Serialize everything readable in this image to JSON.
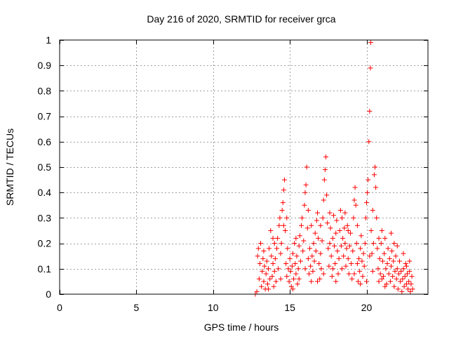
{
  "chart_data": {
    "type": "scatter",
    "title": "Day 216 of 2020, SRMTID for receiver grca",
    "xlabel": "GPS time / hours",
    "ylabel": "SRMTID / TECUs",
    "xlim": [
      0,
      24
    ],
    "ylim": [
      0,
      1
    ],
    "xticks": [
      0,
      5,
      10,
      15,
      20
    ],
    "xtick_labels": [
      "0",
      "5",
      "10",
      "15",
      "20"
    ],
    "yticks": [
      0,
      0.1,
      0.2,
      0.3,
      0.4,
      0.5,
      0.6,
      0.7,
      0.8,
      0.9,
      1
    ],
    "ytick_labels": [
      "0",
      "0.1",
      "0.2",
      "0.3",
      "0.4",
      "0.5",
      "0.6",
      "0.7",
      "0.8",
      "0.9",
      "1"
    ],
    "grid": true,
    "marker": "+",
    "marker_color": "#ff0000",
    "series": [
      {
        "name": "SRMTID",
        "points": [
          [
            12.75,
            0.0
          ],
          [
            12.85,
            0.01
          ],
          [
            12.9,
            0.15
          ],
          [
            12.95,
            0.18
          ],
          [
            13.0,
            0.06
          ],
          [
            13.05,
            0.12
          ],
          [
            13.1,
            0.2
          ],
          [
            13.15,
            0.03
          ],
          [
            13.2,
            0.09
          ],
          [
            13.25,
            0.14
          ],
          [
            13.3,
            0.05
          ],
          [
            13.35,
            0.11
          ],
          [
            13.4,
            0.02
          ],
          [
            13.45,
            0.08
          ],
          [
            13.5,
            0.13
          ],
          [
            13.55,
            0.04
          ],
          [
            13.6,
            0.1
          ],
          [
            13.65,
            0.18
          ],
          [
            13.7,
            0.06
          ],
          [
            13.75,
            0.25
          ],
          [
            13.8,
            0.15
          ],
          [
            13.85,
            0.07
          ],
          [
            13.9,
            0.12
          ],
          [
            13.95,
            0.03
          ],
          [
            14.0,
            0.09
          ],
          [
            14.05,
            0.14
          ],
          [
            14.1,
            0.05
          ],
          [
            14.15,
            0.18
          ],
          [
            14.2,
            0.22
          ],
          [
            14.25,
            0.1
          ],
          [
            14.3,
            0.27
          ],
          [
            14.35,
            0.3
          ],
          [
            14.4,
            0.16
          ],
          [
            14.45,
            0.2
          ],
          [
            14.5,
            0.33
          ],
          [
            14.55,
            0.36
          ],
          [
            14.6,
            0.41
          ],
          [
            14.65,
            0.45
          ],
          [
            14.7,
            0.25
          ],
          [
            14.75,
            0.12
          ],
          [
            14.8,
            0.07
          ],
          [
            14.85,
            0.18
          ],
          [
            14.9,
            0.1
          ],
          [
            14.95,
            0.05
          ],
          [
            15.0,
            0.14
          ],
          [
            15.05,
            0.09
          ],
          [
            15.1,
            0.03
          ],
          [
            15.15,
            0.11
          ],
          [
            15.2,
            0.16
          ],
          [
            15.25,
            0.06
          ],
          [
            15.3,
            0.2
          ],
          [
            15.35,
            0.12
          ],
          [
            15.4,
            0.08
          ],
          [
            15.45,
            0.15
          ],
          [
            15.5,
            0.04
          ],
          [
            15.55,
            0.1
          ],
          [
            15.6,
            0.19
          ],
          [
            15.65,
            0.23
          ],
          [
            15.7,
            0.13
          ],
          [
            15.75,
            0.27
          ],
          [
            15.8,
            0.3
          ],
          [
            15.85,
            0.17
          ],
          [
            15.9,
            0.21
          ],
          [
            15.95,
            0.35
          ],
          [
            16.0,
            0.4
          ],
          [
            16.05,
            0.43
          ],
          [
            16.1,
            0.5
          ],
          [
            16.15,
            0.26
          ],
          [
            16.2,
            0.14
          ],
          [
            16.25,
            0.08
          ],
          [
            16.3,
            0.18
          ],
          [
            16.35,
            0.11
          ],
          [
            16.4,
            0.05
          ],
          [
            16.45,
            0.15
          ],
          [
            16.5,
            0.09
          ],
          [
            16.55,
            0.2
          ],
          [
            16.6,
            0.13
          ],
          [
            16.65,
            0.24
          ],
          [
            16.7,
            0.17
          ],
          [
            16.75,
            0.29
          ],
          [
            16.8,
            0.32
          ],
          [
            16.85,
            0.22
          ],
          [
            16.9,
            0.12
          ],
          [
            16.95,
            0.06
          ],
          [
            17.0,
            0.16
          ],
          [
            17.05,
            0.1
          ],
          [
            17.1,
            0.21
          ],
          [
            17.15,
            0.3
          ],
          [
            17.2,
            0.37
          ],
          [
            17.25,
            0.45
          ],
          [
            17.3,
            0.49
          ],
          [
            17.35,
            0.54
          ],
          [
            17.4,
            0.39
          ],
          [
            17.45,
            0.28
          ],
          [
            17.5,
            0.18
          ],
          [
            17.55,
            0.11
          ],
          [
            17.6,
            0.2
          ],
          [
            17.65,
            0.26
          ],
          [
            17.7,
            0.15
          ],
          [
            17.75,
            0.07
          ],
          [
            17.8,
            0.22
          ],
          [
            17.85,
            0.31
          ],
          [
            17.9,
            0.19
          ],
          [
            17.95,
            0.12
          ],
          [
            18.0,
            0.24
          ],
          [
            18.05,
            0.29
          ],
          [
            18.1,
            0.17
          ],
          [
            18.15,
            0.08
          ],
          [
            18.2,
            0.14
          ],
          [
            18.25,
            0.25
          ],
          [
            18.3,
            0.33
          ],
          [
            18.35,
            0.19
          ],
          [
            18.4,
            0.1
          ],
          [
            18.45,
            0.22
          ],
          [
            18.5,
            0.15
          ],
          [
            18.55,
            0.26
          ],
          [
            18.6,
            0.2
          ],
          [
            18.65,
            0.11
          ],
          [
            18.7,
            0.18
          ],
          [
            18.75,
            0.27
          ],
          [
            18.8,
            0.14
          ],
          [
            18.85,
            0.08
          ],
          [
            18.9,
            0.19
          ],
          [
            18.95,
            0.24
          ],
          [
            19.0,
            0.12
          ],
          [
            19.05,
            0.06
          ],
          [
            19.1,
            0.17
          ],
          [
            19.15,
            0.3
          ],
          [
            19.2,
            0.37
          ],
          [
            19.25,
            0.42
          ],
          [
            19.3,
            0.35
          ],
          [
            19.35,
            0.2
          ],
          [
            19.4,
            0.12
          ],
          [
            19.45,
            0.05
          ],
          [
            19.5,
            0.14
          ],
          [
            19.55,
            0.09
          ],
          [
            19.6,
            0.18
          ],
          [
            19.65,
            0.23
          ],
          [
            19.7,
            0.13
          ],
          [
            19.75,
            0.07
          ],
          [
            19.8,
            0.16
          ],
          [
            19.85,
            0.11
          ],
          [
            19.9,
            0.2
          ],
          [
            19.95,
            0.3
          ],
          [
            20.0,
            0.36
          ],
          [
            20.05,
            0.4
          ],
          [
            20.1,
            0.45
          ],
          [
            20.15,
            0.6
          ],
          [
            20.2,
            0.72
          ],
          [
            20.25,
            0.89
          ],
          [
            20.27,
            0.99
          ],
          [
            20.3,
            0.25
          ],
          [
            20.35,
            0.16
          ],
          [
            20.4,
            0.09
          ],
          [
            20.45,
            0.2
          ],
          [
            20.5,
            0.47
          ],
          [
            20.55,
            0.5
          ],
          [
            20.6,
            0.42
          ],
          [
            20.65,
            0.3
          ],
          [
            20.7,
            0.18
          ],
          [
            20.75,
            0.1
          ],
          [
            20.8,
            0.05
          ],
          [
            20.85,
            0.14
          ],
          [
            20.9,
            0.08
          ],
          [
            20.95,
            0.2
          ],
          [
            21.0,
            0.25
          ],
          [
            21.05,
            0.13
          ],
          [
            21.1,
            0.07
          ],
          [
            21.15,
            0.16
          ],
          [
            21.2,
            0.22
          ],
          [
            21.25,
            0.1
          ],
          [
            21.3,
            0.04
          ],
          [
            21.35,
            0.12
          ],
          [
            21.4,
            0.18
          ],
          [
            21.45,
            0.08
          ],
          [
            21.5,
            0.14
          ],
          [
            21.55,
            0.05
          ],
          [
            21.6,
            0.11
          ],
          [
            21.65,
            0.17
          ],
          [
            21.7,
            0.07
          ],
          [
            21.75,
            0.13
          ],
          [
            21.8,
            0.03
          ],
          [
            21.85,
            0.09
          ],
          [
            21.9,
            0.15
          ],
          [
            21.95,
            0.06
          ],
          [
            22.0,
            0.1
          ],
          [
            22.05,
            0.02
          ],
          [
            22.1,
            0.08
          ],
          [
            22.15,
            0.13
          ],
          [
            22.2,
            0.05
          ],
          [
            22.25,
            0.09
          ],
          [
            22.3,
            0.01
          ],
          [
            22.35,
            0.06
          ],
          [
            22.4,
            0.1
          ],
          [
            22.45,
            0.03
          ],
          [
            22.5,
            0.07
          ],
          [
            22.55,
            0.12
          ],
          [
            22.6,
            0.04
          ],
          [
            22.65,
            0.08
          ],
          [
            22.7,
            0.02
          ],
          [
            22.75,
            0.05
          ],
          [
            22.8,
            0.09
          ],
          [
            22.85,
            0.01
          ],
          [
            22.9,
            0.04
          ],
          [
            22.95,
            0.07
          ],
          [
            23.0,
            0.02
          ],
          [
            13.3,
            0.17
          ],
          [
            13.6,
            0.02
          ],
          [
            14.0,
            0.2
          ],
          [
            14.4,
            0.06
          ],
          [
            14.8,
            0.3
          ],
          [
            15.2,
            0.02
          ],
          [
            15.6,
            0.06
          ],
          [
            16.0,
            0.1
          ],
          [
            16.4,
            0.27
          ],
          [
            16.8,
            0.05
          ],
          [
            17.2,
            0.08
          ],
          [
            17.6,
            0.32
          ],
          [
            18.0,
            0.05
          ],
          [
            18.4,
            0.3
          ],
          [
            18.8,
            0.25
          ],
          [
            19.2,
            0.08
          ],
          [
            19.6,
            0.04
          ],
          [
            20.0,
            0.05
          ],
          [
            20.4,
            0.33
          ],
          [
            20.8,
            0.22
          ],
          [
            21.2,
            0.03
          ],
          [
            21.6,
            0.24
          ],
          [
            22.0,
            0.19
          ],
          [
            22.4,
            0.16
          ],
          [
            22.8,
            0.13
          ],
          [
            13.9,
            0.22
          ],
          [
            14.6,
            0.27
          ],
          [
            15.4,
            0.22
          ],
          [
            16.2,
            0.33
          ],
          [
            17.0,
            0.27
          ],
          [
            17.8,
            0.1
          ],
          [
            18.6,
            0.32
          ],
          [
            19.4,
            0.27
          ],
          [
            20.2,
            0.15
          ],
          [
            21.0,
            0.06
          ],
          [
            21.8,
            0.2
          ],
          [
            22.6,
            0.11
          ]
        ]
      }
    ]
  }
}
